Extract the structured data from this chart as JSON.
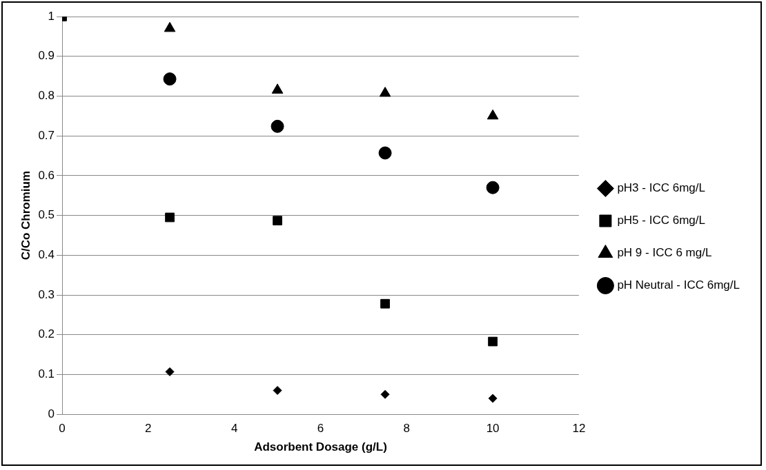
{
  "chart_data": {
    "type": "scatter",
    "xlabel": "Adsorbent Dosage (g/L)",
    "ylabel": "C/Co Chromium",
    "xlim": [
      0,
      12
    ],
    "xticks": [
      0,
      2,
      4,
      6,
      8,
      10,
      12
    ],
    "ylim": [
      0,
      1
    ],
    "yticks": [
      0,
      0.1,
      0.2,
      0.3,
      0.4,
      0.5,
      0.6,
      0.7,
      0.8,
      0.9,
      1
    ],
    "grid": "y",
    "legend": "right",
    "series": [
      {
        "name": "pH3 - ICC 6mg/L",
        "color": "#000000",
        "marker": "diamond",
        "x": [
          2.5,
          5,
          7.5,
          10
        ],
        "values": [
          0.107,
          0.06,
          0.05,
          0.04
        ]
      },
      {
        "name": "pH5 - ICC 6mg/L",
        "color": "#000000",
        "marker": "square",
        "x": [
          0,
          2.5,
          5,
          7.5,
          10
        ],
        "values": [
          1,
          0.495,
          0.487,
          0.278,
          0.183
        ]
      },
      {
        "name": "pH 9 - ICC 6 mg/L",
        "color": "#000000",
        "marker": "triangle",
        "x": [
          2.5,
          5,
          7.5,
          10
        ],
        "values": [
          0.97,
          0.815,
          0.807,
          0.75
        ]
      },
      {
        "name": "pH Neutral - ICC 6mg/L",
        "color": "#000000",
        "marker": "circle",
        "x": [
          2.5,
          5,
          7.5,
          10
        ],
        "values": [
          0.843,
          0.724,
          0.657,
          0.57
        ]
      }
    ]
  }
}
